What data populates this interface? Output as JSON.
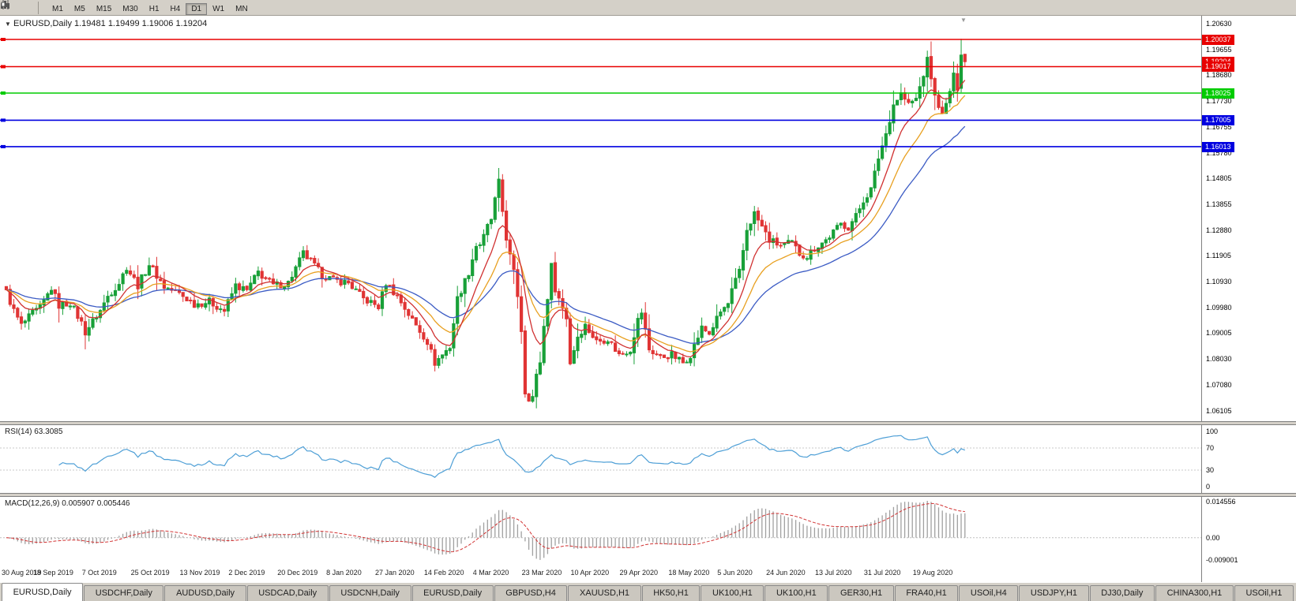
{
  "toolbar": {
    "timeframes": [
      "M1",
      "M5",
      "M15",
      "M30",
      "H1",
      "H4",
      "D1",
      "W1",
      "MN"
    ],
    "active_timeframe": "D1",
    "icons": [
      "bar-chart-icon",
      "candlestick-chart-icon"
    ]
  },
  "chart": {
    "header": "EURUSD,Daily 1.19481 1.19499 1.19006 1.19204",
    "symbol": "EURUSD",
    "period": "Daily",
    "ohlc": {
      "open": "1.19481",
      "high": "1.19499",
      "low": "1.19006",
      "close": "1.19204"
    }
  },
  "price_axis": {
    "labels": [
      "1.20630",
      "1.19655",
      "1.18680",
      "1.17730",
      "1.16755",
      "1.15780",
      "1.14805",
      "1.13855",
      "1.12880",
      "1.11905",
      "1.10930",
      "1.09980",
      "1.09005",
      "1.08030",
      "1.07080",
      "1.06105"
    ]
  },
  "hlines": [
    {
      "price": 1.20037,
      "label": "1.20037",
      "color": "#e80000"
    },
    {
      "price": 1.19017,
      "label": "1.19017",
      "color": "#e80000"
    },
    {
      "price": 1.18025,
      "label": "1.18025",
      "color": "#00cc00"
    },
    {
      "price": 1.17005,
      "label": "1.17005",
      "color": "#0000e0"
    },
    {
      "price": 1.16013,
      "label": "1.16013",
      "color": "#0000e0"
    }
  ],
  "current_price_tag": {
    "price": 1.19204,
    "label": "1.19204",
    "color": "#e80000"
  },
  "date_axis": {
    "labels": [
      "30 Aug 2019",
      "18 Sep 2019",
      "7 Oct 2019",
      "25 Oct 2019",
      "13 Nov 2019",
      "2 Dec 2019",
      "20 Dec 2019",
      "8 Jan 2020",
      "27 Jan 2020",
      "14 Feb 2020",
      "4 Mar 2020",
      "23 Mar 2020",
      "10 Apr 2020",
      "29 Apr 2020",
      "18 May 2020",
      "5 Jun 2020",
      "24 Jun 2020",
      "13 Jul 2020",
      "31 Jul 2020",
      "19 Aug 2020"
    ]
  },
  "rsi": {
    "label": "RSI(14) 63.3085",
    "name": "RSI",
    "period": 14,
    "value": "63.3085",
    "axis_labels": [
      "100",
      "70",
      "30",
      "0"
    ],
    "axis_values": [
      100,
      70,
      30,
      0
    ],
    "levels": [
      70,
      30
    ],
    "color": "#4e9fd6"
  },
  "macd": {
    "label": "MACD(12,26,9) 0.005907 0.005446",
    "params": [
      12,
      26,
      9
    ],
    "main_value": "0.005907",
    "signal_value": "0.005446",
    "axis_labels": [
      "0.014556",
      "0.00",
      "-0.009001"
    ],
    "axis_values": [
      0.014556,
      0,
      -0.009001
    ],
    "hist_color": "#a0a0a0",
    "signal_color": "#d23434"
  },
  "tabs": [
    "EURUSD,Daily",
    "USDCHF,Daily",
    "AUDUSD,Daily",
    "USDCAD,Daily",
    "USDCNH,Daily",
    "EURUSD,Daily",
    "GBPUSD,H4",
    "XAUUSD,H1",
    "HK50,H1",
    "UK100,H1",
    "UK100,H1",
    "GER30,H1",
    "FRA40,H1",
    "USOil,H4",
    "USDJPY,H1",
    "DJ30,Daily",
    "CHINA300,H1",
    "USOil,H1"
  ],
  "active_tab": 0,
  "colors": {
    "up": "#18a038",
    "down": "#e03434",
    "ma_fast": "#d03030",
    "ma_mid": "#e8a020",
    "ma_slow": "#3b5bc4",
    "chart_bg": "#ffffff",
    "frame": "#d4d0c8"
  },
  "chart_data": {
    "type": "candlestick",
    "symbol": "EURUSD",
    "timeframe": "Daily",
    "price_range": {
      "top": 1.2063,
      "bottom": 1.06105
    },
    "bars_total": 256,
    "close_anchors": [
      [
        0,
        1.1055
      ],
      [
        2,
        1.0985
      ],
      [
        4,
        1.093
      ],
      [
        7,
        1.0975
      ],
      [
        9,
        1.0995
      ],
      [
        12,
        1.107
      ],
      [
        14,
        1.1005
      ],
      [
        17,
        1.1015
      ],
      [
        20,
        1.094
      ],
      [
        21,
        1.0905
      ],
      [
        25,
        1.0985
      ],
      [
        27,
        1.104
      ],
      [
        30,
        1.109
      ],
      [
        32,
        1.115
      ],
      [
        35,
        1.108
      ],
      [
        38,
        1.116
      ],
      [
        42,
        1.1075
      ],
      [
        46,
        1.105
      ],
      [
        50,
        1.101
      ],
      [
        54,
        1.102
      ],
      [
        58,
        1.0985
      ],
      [
        61,
        1.108
      ],
      [
        64,
        1.106
      ],
      [
        67,
        1.113
      ],
      [
        71,
        1.108
      ],
      [
        75,
        1.109
      ],
      [
        79,
        1.12
      ],
      [
        81,
        1.117
      ],
      [
        84,
        1.112
      ],
      [
        87,
        1.11
      ],
      [
        91,
        1.109
      ],
      [
        95,
        1.103
      ],
      [
        99,
        1.1
      ],
      [
        101,
        1.109
      ],
      [
        104,
        1.104
      ],
      [
        108,
        1.095
      ],
      [
        112,
        1.087
      ],
      [
        114,
        1.079
      ],
      [
        118,
        1.085
      ],
      [
        120,
        1.103
      ],
      [
        123,
        1.113
      ],
      [
        125,
        1.123
      ],
      [
        127,
        1.125
      ],
      [
        129,
        1.133
      ],
      [
        131,
        1.145
      ],
      [
        133,
        1.127
      ],
      [
        134,
        1.118
      ],
      [
        136,
        1.105
      ],
      [
        137,
        1.092
      ],
      [
        138,
        1.069
      ],
      [
        140,
        1.066
      ],
      [
        142,
        1.08
      ],
      [
        144,
        1.105
      ],
      [
        145,
        1.114
      ],
      [
        147,
        1.103
      ],
      [
        149,
        1.096
      ],
      [
        150,
        1.079
      ],
      [
        152,
        1.089
      ],
      [
        154,
        1.093
      ],
      [
        157,
        1.087
      ],
      [
        160,
        1.088
      ],
      [
        163,
        1.082
      ],
      [
        166,
        1.084
      ],
      [
        168,
        1.095
      ],
      [
        169,
        1.098
      ],
      [
        171,
        1.084
      ],
      [
        174,
        1.081
      ],
      [
        177,
        1.082
      ],
      [
        180,
        1.079
      ],
      [
        182,
        1.082
      ],
      [
        185,
        1.092
      ],
      [
        187,
        1.09
      ],
      [
        190,
        1.098
      ],
      [
        192,
        1.101
      ],
      [
        193,
        1.106
      ],
      [
        195,
        1.113
      ],
      [
        197,
        1.129
      ],
      [
        199,
        1.135
      ],
      [
        201,
        1.13
      ],
      [
        203,
        1.125
      ],
      [
        206,
        1.123
      ],
      [
        209,
        1.124
      ],
      [
        211,
        1.12
      ],
      [
        213,
        1.119
      ],
      [
        215,
        1.122
      ],
      [
        218,
        1.125
      ],
      [
        220,
        1.128
      ],
      [
        222,
        1.131
      ],
      [
        224,
        1.13
      ],
      [
        226,
        1.134
      ],
      [
        228,
        1.14
      ],
      [
        230,
        1.144
      ],
      [
        232,
        1.156
      ],
      [
        234,
        1.165
      ],
      [
        236,
        1.176
      ],
      [
        238,
        1.18
      ],
      [
        240,
        1.176
      ],
      [
        242,
        1.178
      ],
      [
        244,
        1.187
      ],
      [
        245,
        1.193
      ],
      [
        246,
        1.186
      ],
      [
        247,
        1.179
      ],
      [
        249,
        1.172
      ],
      [
        250,
        1.176
      ],
      [
        251,
        1.181
      ],
      [
        252,
        1.187
      ],
      [
        253,
        1.182
      ]
    ],
    "last_bars": [
      {
        "o": 1.182,
        "h": 1.2006,
        "l": 1.1805,
        "c": 1.1945
      },
      {
        "o": 1.19481,
        "h": 1.19499,
        "l": 1.19006,
        "c": 1.19204
      }
    ],
    "moving_averages": [
      {
        "type": "EMA",
        "period": 9,
        "color": "#d03030"
      },
      {
        "type": "EMA",
        "period": 18,
        "color": "#e8a020"
      },
      {
        "type": "EMA",
        "period": 34,
        "color": "#3b5bc4"
      }
    ],
    "indicators": {
      "rsi_period": 14,
      "macd_params": [
        12,
        26,
        9
      ]
    }
  }
}
